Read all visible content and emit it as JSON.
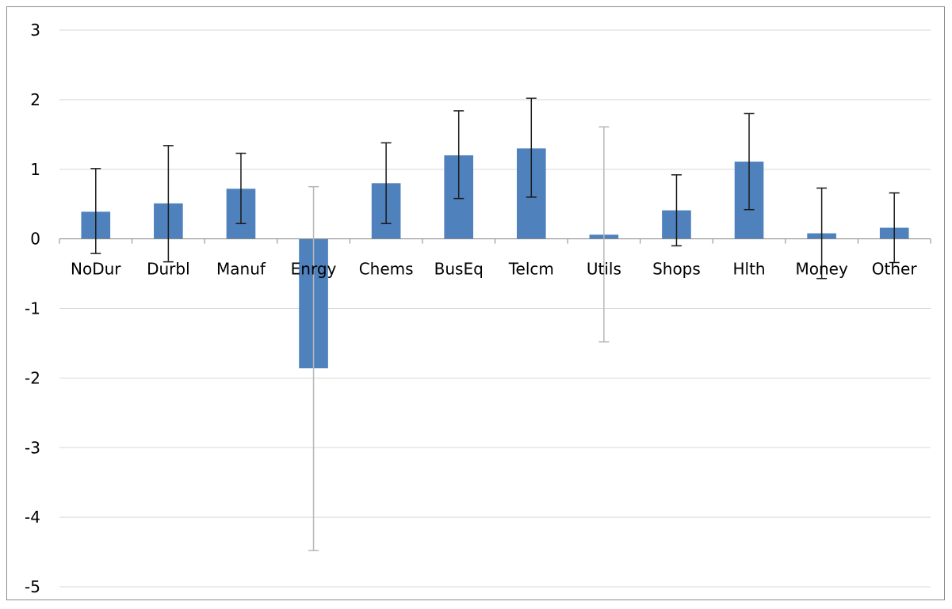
{
  "chart_data": {
    "type": "bar",
    "title": "",
    "xlabel": "",
    "ylabel": "",
    "ylim": [
      -5,
      3
    ],
    "yticks": [
      3,
      2,
      1,
      0,
      -1,
      -2,
      -3,
      -4,
      -5
    ],
    "grid": true,
    "legend": "none",
    "bar_color": "#4f81bd",
    "categories": [
      "NoDur",
      "Durbl",
      "Manuf",
      "Enrgy",
      "Chems",
      "BusEq",
      "Telcm",
      "Utils",
      "Shops",
      "Hlth",
      "Money",
      "Other"
    ],
    "values": [
      0.39,
      0.51,
      0.72,
      -1.86,
      0.8,
      1.2,
      1.3,
      0.06,
      0.41,
      1.11,
      0.08,
      0.16
    ],
    "error_low": [
      -0.21,
      -0.33,
      0.22,
      -4.48,
      0.22,
      0.58,
      0.6,
      -1.48,
      -0.1,
      0.42,
      -0.57,
      -0.34
    ],
    "error_high": [
      1.01,
      1.34,
      1.23,
      0.75,
      1.38,
      1.84,
      2.02,
      1.61,
      0.92,
      1.8,
      0.73,
      0.66
    ],
    "error_bar_colors": [
      "#1a1a1a",
      "#1a1a1a",
      "#1a1a1a",
      "#b8b8b8",
      "#1a1a1a",
      "#1a1a1a",
      "#1a1a1a",
      "#b8b8b8",
      "#1a1a1a",
      "#1a1a1a",
      "#1a1a1a",
      "#1a1a1a"
    ]
  }
}
